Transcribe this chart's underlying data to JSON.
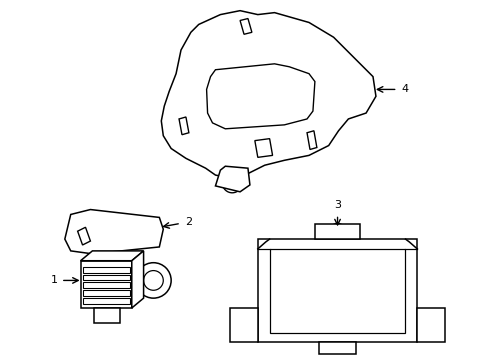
{
  "background_color": "#ffffff",
  "line_color": "#000000",
  "line_width": 1.1,
  "fig_w": 4.9,
  "fig_h": 3.6,
  "dpi": 100
}
